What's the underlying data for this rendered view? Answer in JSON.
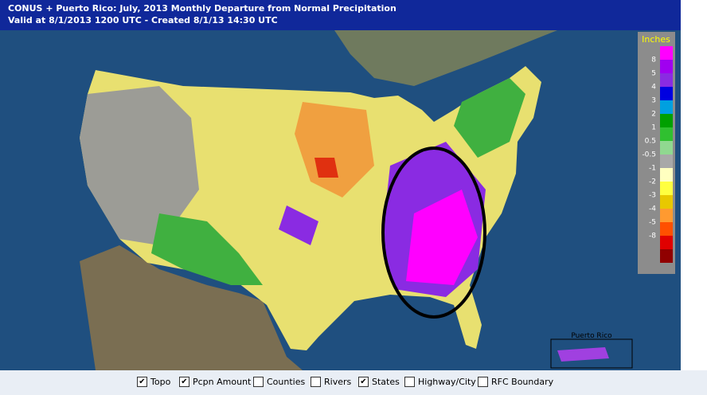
{
  "header": {
    "title": "CONUS + Puerto Rico: July, 2013 Monthly Departure from Normal Precipitation",
    "subtitle": "Valid at 8/1/2013 1200 UTC - Created 8/1/13 14:30 UTC"
  },
  "legend": {
    "title": "Inches",
    "colors": [
      "#ff00ff",
      "#a000f0",
      "#8a2be2",
      "#0000e0",
      "#00a0e0",
      "#00a000",
      "#30c030",
      "#90d890",
      "#a8a8a8",
      "#ffffc0",
      "#ffff40",
      "#e8c800",
      "#ff9a30",
      "#ff5000",
      "#e00000",
      "#900000"
    ],
    "labels": [
      "8",
      "5",
      "4",
      "3",
      "2",
      "1",
      "0.5",
      "-0.5",
      "-1",
      "-2",
      "-3",
      "-4",
      "-5",
      "-8"
    ]
  },
  "inset": {
    "label": "Puerto Rico"
  },
  "layers": [
    {
      "label": "Topo",
      "checked": true
    },
    {
      "label": "Pcpn Amount",
      "checked": true
    },
    {
      "label": "Counties",
      "checked": false
    },
    {
      "label": "Rivers",
      "checked": false
    },
    {
      "label": "States",
      "checked": true
    },
    {
      "label": "Highway/City",
      "checked": false
    },
    {
      "label": "RFC Boundary",
      "checked": false
    }
  ]
}
